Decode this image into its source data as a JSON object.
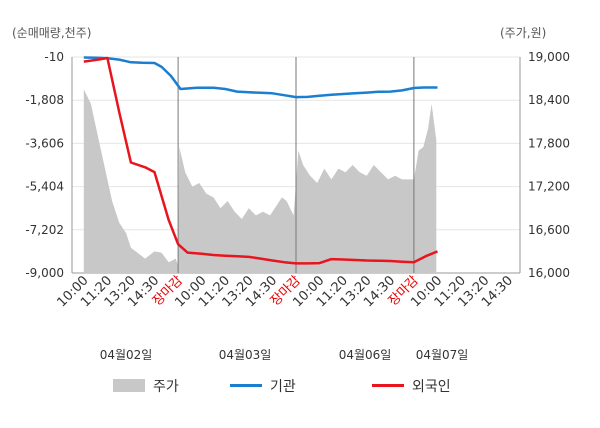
{
  "chart_data": {
    "type": "line",
    "left_axis_label": "(순매매량,천주)",
    "right_axis_label": "(주가,원)",
    "left_ticks": [
      "-10",
      "-1,808",
      "-3,606",
      "-5,404",
      "-7,202",
      "-9,000"
    ],
    "left_ylim": [
      -9000,
      -10
    ],
    "right_ticks": [
      "19,000",
      "18,400",
      "17,800",
      "17,200",
      "16,600",
      "16,000"
    ],
    "right_ylim": [
      16000,
      19000
    ],
    "x_tick_labels": [
      "10:00",
      "11:20",
      "13:20",
      "14:30",
      "장마감",
      "10:00",
      "11:20",
      "13:20",
      "14:30",
      "장마감",
      "10:00",
      "11:20",
      "13:20",
      "14:30",
      "장마감",
      "10:00",
      "11:20",
      "13:20",
      "14:30"
    ],
    "close_label": "장마감",
    "dates": [
      "04월02일",
      "04월03일",
      "04월06일",
      "04월07일"
    ],
    "legend": [
      {
        "key": "price",
        "label": "주가",
        "color": "#c8c8c8",
        "marker": "area"
      },
      {
        "key": "inst",
        "label": "기관",
        "color": "#1a7fd1",
        "marker": "line"
      },
      {
        "key": "foreign",
        "label": "외국인",
        "color": "#e8141e",
        "marker": "line"
      }
    ],
    "series": [
      {
        "key": "price",
        "name": "주가",
        "type": "area",
        "axis": "right",
        "color": "#c8c8c8",
        "x": [
          0,
          0.3,
          0.6,
          0.9,
          1.2,
          1.5,
          1.8,
          2.0,
          2.2,
          2.4,
          2.6,
          2.8,
          3.0,
          3.3,
          3.6,
          3.9,
          4.0,
          4.05,
          4.3,
          4.6,
          4.9,
          5.2,
          5.5,
          5.8,
          6.1,
          6.4,
          6.7,
          7.0,
          7.3,
          7.6,
          7.9,
          8.2,
          8.4,
          8.6,
          8.9,
          9.1,
          9.3,
          9.6,
          9.9,
          10.2,
          10.5,
          10.8,
          11.1,
          11.4,
          11.7,
          12.0,
          12.3,
          12.6,
          12.9,
          13.2,
          13.5,
          13.8,
          14.0,
          14.2,
          14.4,
          14.6,
          14.75,
          14.85,
          14.95
        ],
        "values": [
          18550,
          18350,
          17900,
          17450,
          17000,
          16700,
          16550,
          16350,
          16300,
          16250,
          16200,
          16250,
          16300,
          16280,
          16150,
          16200,
          16100,
          17750,
          17400,
          17200,
          17250,
          17100,
          17050,
          16900,
          17000,
          16850,
          16750,
          16900,
          16800,
          16850,
          16800,
          16950,
          17050,
          17000,
          16800,
          17700,
          17500,
          17350,
          17250,
          17450,
          17300,
          17450,
          17400,
          17500,
          17400,
          17350,
          17500,
          17400,
          17300,
          17350,
          17300,
          17300,
          17300,
          17700,
          17750,
          18000,
          18350,
          18100,
          17850
        ]
      },
      {
        "key": "inst",
        "name": "기관",
        "type": "line",
        "axis": "left",
        "color": "#1a7fd1",
        "x": [
          0,
          0.6,
          1.0,
          1.5,
          2.0,
          2.5,
          3.0,
          3.3,
          3.7,
          4.1,
          4.8,
          5.5,
          6.0,
          6.5,
          7.0,
          7.5,
          8.0,
          8.5,
          9.0,
          9.5,
          10.0,
          10.5,
          11.0,
          11.5,
          12.0,
          12.5,
          13.0,
          13.5,
          14.0,
          14.4,
          15.0
        ],
        "values": [
          -30,
          -40,
          -60,
          -120,
          -230,
          -250,
          -260,
          -420,
          -800,
          -1340,
          -1290,
          -1290,
          -1340,
          -1450,
          -1480,
          -1500,
          -1520,
          -1600,
          -1680,
          -1670,
          -1620,
          -1580,
          -1550,
          -1520,
          -1490,
          -1460,
          -1450,
          -1400,
          -1300,
          -1280,
          -1280
        ]
      },
      {
        "key": "foreign",
        "name": "외국인",
        "type": "line",
        "axis": "left",
        "color": "#e8141e",
        "x": [
          0,
          0.6,
          1.0,
          1.5,
          2.0,
          2.6,
          3.0,
          3.3,
          3.6,
          4.0,
          4.4,
          5.0,
          5.5,
          6.0,
          6.5,
          7.0,
          7.5,
          8.0,
          8.5,
          9.0,
          9.5,
          10.0,
          10.5,
          11.0,
          11.5,
          12.0,
          12.5,
          13.0,
          13.5,
          14.0,
          14.5,
          15.0
        ],
        "values": [
          -200,
          -120,
          -50,
          -2300,
          -4400,
          -4600,
          -4800,
          -5800,
          -6800,
          -7800,
          -8150,
          -8200,
          -8250,
          -8280,
          -8300,
          -8330,
          -8400,
          -8480,
          -8550,
          -8600,
          -8600,
          -8590,
          -8420,
          -8440,
          -8460,
          -8480,
          -8490,
          -8500,
          -8530,
          -8550,
          -8300,
          -8100
        ]
      }
    ]
  }
}
